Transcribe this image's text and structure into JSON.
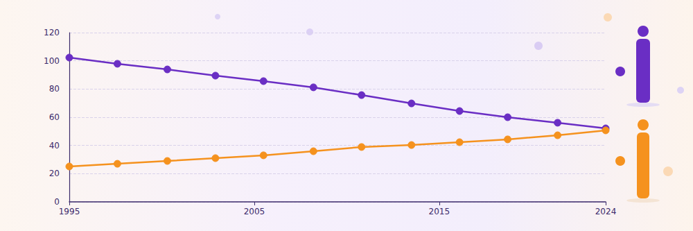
{
  "chart_data": {
    "type": "line",
    "x": [
      1995,
      1997.6,
      2000.3,
      2002.9,
      2005.5,
      2008.2,
      2010.8,
      2013.5,
      2016.1,
      2018.7,
      2021.4,
      2024
    ],
    "series": [
      {
        "color": "#6a2ec4",
        "values": [
          102.3,
          97.9,
          93.9,
          89.5,
          85.6,
          81.2,
          75.7,
          69.8,
          64.4,
          60,
          56.1,
          52.1
        ]
      },
      {
        "color": "#f5921e",
        "values": [
          25.1,
          27,
          29,
          31,
          33,
          35.9,
          38.9,
          40.3,
          42.3,
          44.3,
          47.2,
          50.7
        ]
      }
    ],
    "xlim": [
      1995,
      2024
    ],
    "xticks": [
      1995,
      2005,
      2015,
      2024
    ],
    "ylim": [
      0,
      120
    ],
    "yticks": [
      0,
      20,
      40,
      60,
      80,
      100,
      120
    ],
    "grid": true,
    "marker": "circle"
  }
}
